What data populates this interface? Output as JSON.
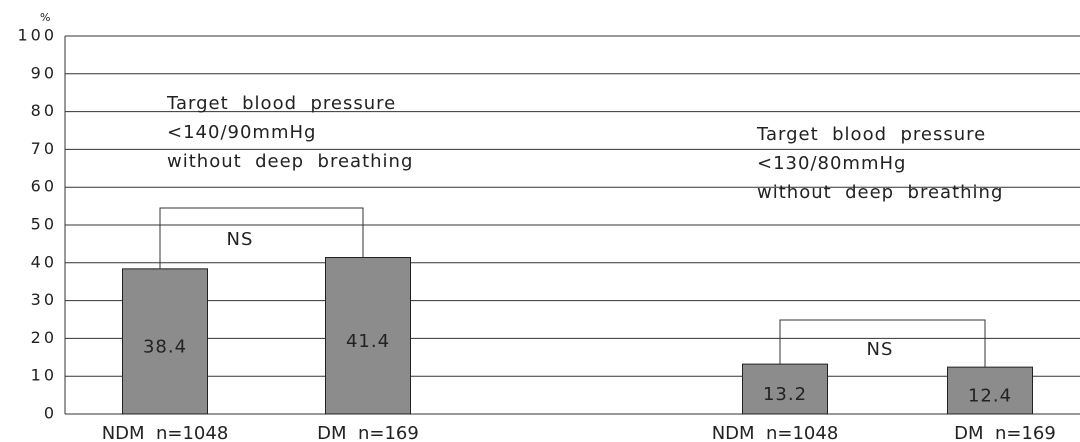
{
  "chart_data": {
    "type": "bar",
    "y_unit": "%",
    "categories": [
      "NDM  n=1048",
      "DM  n=169",
      "NDM  n=1048",
      "DM  n=169"
    ],
    "values": [
      38.4,
      41.4,
      13.2,
      12.4
    ],
    "color": "#8c8c8c",
    "ylim": [
      0,
      100
    ],
    "yticks": [
      0,
      10,
      20,
      30,
      40,
      50,
      60,
      70,
      80,
      90,
      100
    ],
    "grid": true,
    "annotations": [
      {
        "lines": [
          "Target  blood  pressure",
          "<140/90mmHg",
          "without  deep  breathing"
        ]
      },
      {
        "lines": [
          "Target  blood  pressure",
          "<130/80mmHg",
          "without  deep  breathing"
        ]
      }
    ],
    "brackets": [
      {
        "label": "NS"
      },
      {
        "label": "NS"
      }
    ]
  }
}
